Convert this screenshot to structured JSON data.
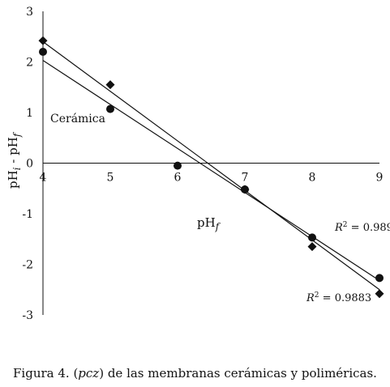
{
  "chart_data": {
    "type": "scatter",
    "x_axis": {
      "min": 4,
      "max": 9,
      "ticks": [
        "4",
        "5",
        "6",
        "7",
        "8",
        "9"
      ],
      "crosses_y_at": 0
    },
    "y_axis": {
      "min": -3,
      "max": 3,
      "ticks": [
        "3",
        "2",
        "1",
        "0",
        "-1",
        "-2",
        "-3"
      ]
    },
    "xlabel": {
      "main": "pH",
      "sub": "f"
    },
    "ylabel": {
      "part1": "pH",
      "sub1": "i",
      "sep": " - ",
      "part2": "pH",
      "sub2": "f"
    },
    "annotation": "Cerámica",
    "grid": false,
    "series": [
      {
        "marker": "circle",
        "x": [
          4,
          5,
          6,
          7,
          8,
          9
        ],
        "y": [
          2.2,
          1.07,
          -0.05,
          -0.52,
          -1.47,
          -2.27
        ],
        "trendline": {
          "y_start": 2.03,
          "y_end": -2.32
        },
        "r2": {
          "symbol": "R",
          "exp": "2",
          "text": " = 0.989"
        }
      },
      {
        "marker": "diamond",
        "x": [
          4,
          5,
          7,
          8,
          9
        ],
        "y": [
          2.42,
          1.55,
          -0.52,
          -1.65,
          -2.58
        ],
        "trendline": {
          "y_start": 2.4,
          "y_end": -2.5
        },
        "r2": {
          "symbol": "R",
          "exp": "2",
          "text": " = 0.9883"
        }
      }
    ]
  },
  "caption": {
    "prefix": "Figura 4. (",
    "italic": "pcz",
    "suffix": ") de las membranas cerámicas y poliméricas."
  }
}
